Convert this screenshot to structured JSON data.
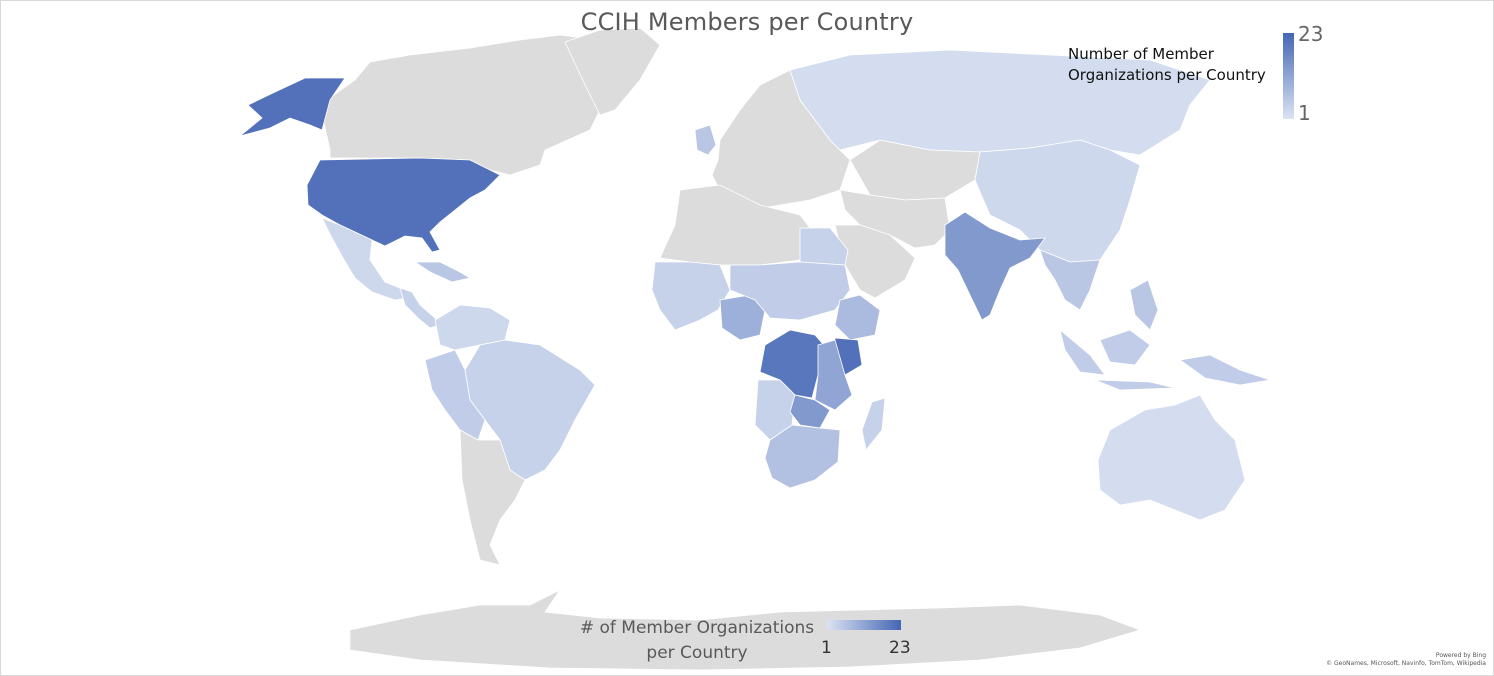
{
  "map": {
    "title": "CCIH Members per Country",
    "legend_top": {
      "label": "Number of Member Organizations per Country",
      "max": "23",
      "min": "1"
    },
    "legend_bottom": {
      "label_line1": "# of Member Organizations",
      "label_line2": "per Country",
      "min": "1",
      "max": "23"
    },
    "attribution": {
      "line1": "Powered by Bing",
      "line2": "© GeoNames, Microsoft, Navinfo, TomTom, Wikipedia"
    },
    "colors": {
      "no_data": "#dcdcdc",
      "low": "#dbe3f3",
      "high": "#4466b4"
    },
    "scale": {
      "min": 1,
      "max": 23
    },
    "regions": [
      {
        "name": "USA",
        "value": 21
      },
      {
        "name": "Alaska",
        "value": 21
      },
      {
        "name": "Canada",
        "value": null
      },
      {
        "name": "Greenland",
        "value": null
      },
      {
        "name": "Mexico",
        "value": 3
      },
      {
        "name": "Central America",
        "value": 4
      },
      {
        "name": "Caribbean",
        "value": 6
      },
      {
        "name": "Colombia & Venezuela",
        "value": 3
      },
      {
        "name": "Brazil",
        "value": 4
      },
      {
        "name": "Peru & Bolivia",
        "value": 5
      },
      {
        "name": "Argentina & Chile",
        "value": null
      },
      {
        "name": "Russia",
        "value": 2
      },
      {
        "name": "Europe",
        "value": null
      },
      {
        "name": "United Kingdom",
        "value": 6
      },
      {
        "name": "Central Asia",
        "value": null
      },
      {
        "name": "China",
        "value": 3
      },
      {
        "name": "Middle East",
        "value": null
      },
      {
        "name": "Saudi Arabia",
        "value": null
      },
      {
        "name": "India",
        "value": 14
      },
      {
        "name": "Southeast Asia",
        "value": 6
      },
      {
        "name": "Indonesia",
        "value": 5
      },
      {
        "name": "Australia",
        "value": 2
      },
      {
        "name": "North Africa",
        "value": null
      },
      {
        "name": "Egypt",
        "value": 4
      },
      {
        "name": "West Africa",
        "value": 4
      },
      {
        "name": "Nigeria",
        "value": 10
      },
      {
        "name": "Sahel",
        "value": 5
      },
      {
        "name": "Ethiopia",
        "value": 8
      },
      {
        "name": "DR Congo",
        "value": 20
      },
      {
        "name": "Kenya",
        "value": 21
      },
      {
        "name": "Tanzania & Uganda",
        "value": 12
      },
      {
        "name": "Zambia",
        "value": 14
      },
      {
        "name": "Southern Africa",
        "value": 7
      },
      {
        "name": "Angola",
        "value": 4
      },
      {
        "name": "Madagascar",
        "value": 4
      },
      {
        "name": "Antarctica",
        "value": null
      }
    ]
  }
}
